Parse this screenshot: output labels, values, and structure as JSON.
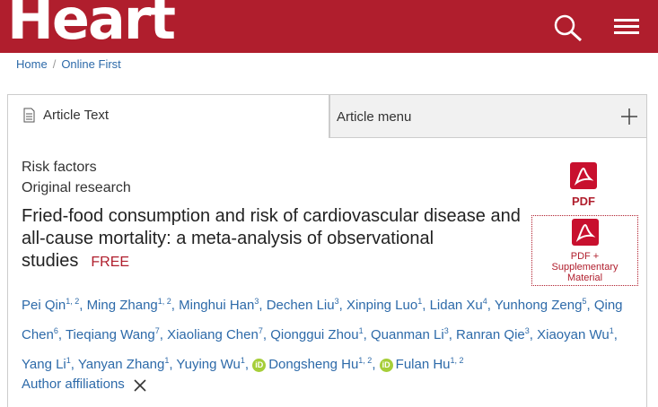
{
  "header": {
    "logo": "Heart"
  },
  "breadcrumb": [
    "Home",
    "Online First"
  ],
  "tabs": {
    "article_text": "Article Text",
    "article_menu": "Article menu"
  },
  "article": {
    "category1": "Risk factors",
    "category2": "Original research",
    "title": "Fried-food consumption and risk of cardiovascular disease and all-cause mortality: a meta-analysis of observational studies",
    "free_badge": "FREE",
    "pdf_label": "PDF",
    "pdf_supp_label1": "PDF +",
    "pdf_supp_label2": "Supplementary",
    "pdf_supp_label3": "Material",
    "authors": [
      {
        "name": "Pei Qin",
        "sup": "1, 2"
      },
      {
        "name": "Ming Zhang",
        "sup": "1, 2"
      },
      {
        "name": "Minghui Han",
        "sup": "3"
      },
      {
        "name": "Dechen Liu",
        "sup": "3"
      },
      {
        "name": "Xinping Luo",
        "sup": "1"
      },
      {
        "name": "Lidan Xu",
        "sup": "4"
      },
      {
        "name": "Yunhong Zeng",
        "sup": "5"
      },
      {
        "name": "Qing Chen",
        "sup": "6"
      },
      {
        "name": "Tieqiang Wang",
        "sup": "7"
      },
      {
        "name": "Xiaoliang Chen",
        "sup": "7"
      },
      {
        "name": "Qionggui Zhou",
        "sup": "1"
      },
      {
        "name": "Quanman Li",
        "sup": "3"
      },
      {
        "name": "Ranran Qie",
        "sup": "3"
      },
      {
        "name": "Xiaoyan Wu",
        "sup": "1"
      },
      {
        "name": "Yang Li",
        "sup": "1"
      },
      {
        "name": "Yanyan Zhang",
        "sup": "1"
      },
      {
        "name": "Yuying Wu",
        "sup": "1"
      },
      {
        "name": "Dongsheng Hu",
        "sup": "1, 2",
        "orcid": true
      },
      {
        "name": "Fulan Hu",
        "sup": "1, 2",
        "orcid": true
      }
    ],
    "affiliations_label": "Author affiliations"
  },
  "colors": {
    "brand": "#b01e2d",
    "link": "#2d6aa9",
    "orcid": "#a6ce39"
  }
}
